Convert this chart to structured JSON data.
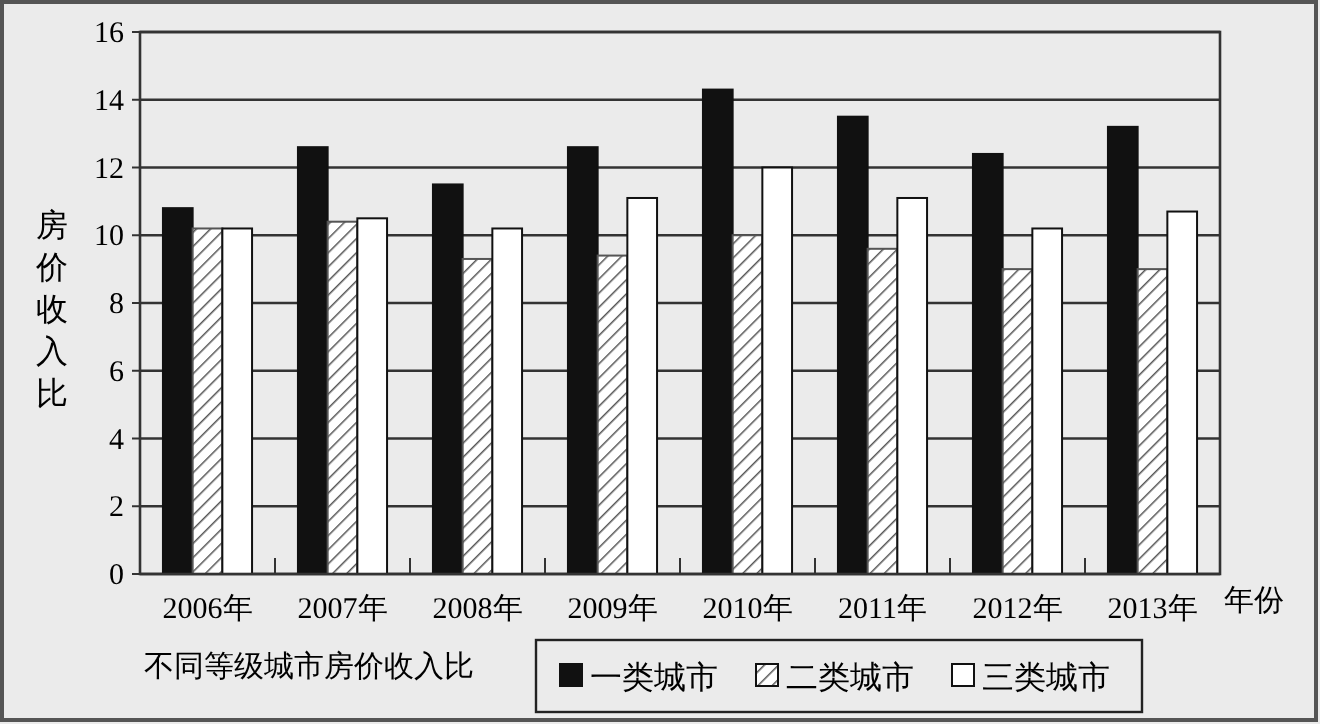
{
  "chart_data": {
    "type": "bar",
    "title": "不同等级城市房价收入比",
    "ylabel": "房价收入比",
    "xlabel": "年份",
    "categories": [
      "2006年",
      "2007年",
      "2008年",
      "2009年",
      "2010年",
      "2011年",
      "2012年",
      "2013年"
    ],
    "series": [
      {
        "name": "一类城市",
        "color": "#111111",
        "values": [
          10.8,
          12.6,
          11.5,
          12.6,
          14.3,
          13.5,
          12.4,
          13.2
        ]
      },
      {
        "name": "二类城市",
        "color": "#555555",
        "values": [
          10.2,
          10.4,
          9.3,
          9.4,
          10.0,
          9.6,
          9.0,
          9.0
        ]
      },
      {
        "name": "三类城市",
        "color": "#ffffff",
        "values": [
          10.2,
          10.5,
          10.2,
          11.1,
          12.0,
          11.1,
          10.2,
          10.7
        ]
      }
    ],
    "ylim": [
      0,
      16
    ],
    "yticks": [
      0,
      2,
      4,
      6,
      8,
      10,
      12,
      14,
      16
    ],
    "grid": "y",
    "legend": "bottom"
  }
}
